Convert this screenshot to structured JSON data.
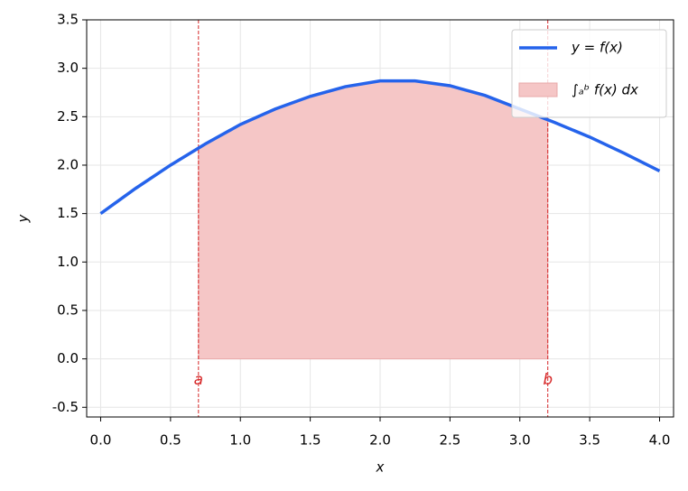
{
  "chart_data": {
    "type": "line",
    "x_label": "x",
    "y_label": "y",
    "x": [
      0,
      0.25,
      0.5,
      0.75,
      1.0,
      1.25,
      1.5,
      1.75,
      2.0,
      2.25,
      2.5,
      2.75,
      3.0,
      3.25,
      3.5,
      3.75,
      4.0
    ],
    "series": [
      {
        "name": "y = f(x)",
        "color": "#2563eb",
        "values": [
          1.5,
          1.76,
          2.0,
          2.22,
          2.42,
          2.58,
          2.71,
          2.81,
          2.87,
          2.87,
          2.82,
          2.72,
          2.58,
          2.44,
          2.29,
          2.12,
          1.94
        ]
      }
    ],
    "area": {
      "name": "∫ₐᵇ f(x) dx",
      "color": "#f5c6c6"
    },
    "markers": [
      {
        "label": "a",
        "value": 0.7
      },
      {
        "label": "b",
        "value": 3.2
      }
    ],
    "marker_color": "#d62728",
    "xlim": [
      -0.1,
      4.1
    ],
    "ylim": [
      -0.6,
      3.5
    ],
    "xticks": [
      {
        "value": 0,
        "label": "0.0"
      },
      0.5,
      {
        "value": 1,
        "label": "1.0"
      },
      1.5,
      {
        "value": 2,
        "label": "2.0"
      },
      2.5,
      {
        "value": 3,
        "label": "3.0"
      },
      3.5,
      {
        "value": 4,
        "label": "4.0"
      }
    ],
    "yticks": [
      -0.5,
      {
        "value": 0,
        "label": "0.0"
      },
      0.5,
      {
        "value": 1,
        "label": "1.0"
      },
      1.5,
      {
        "value": 2,
        "label": "2.0"
      },
      2.5,
      {
        "value": 3,
        "label": "3.0"
      },
      3.5
    ],
    "grid": true,
    "legend": "upper right"
  }
}
